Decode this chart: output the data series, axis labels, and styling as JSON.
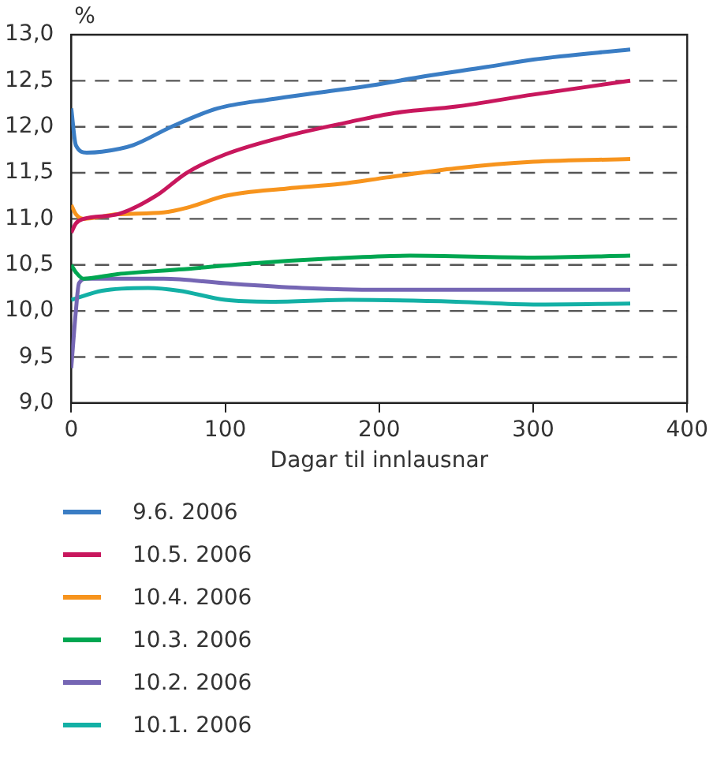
{
  "chart_data": {
    "type": "line",
    "xlabel": "Dagar til innlausnar",
    "ylabel": "%",
    "xlim": [
      0,
      400
    ],
    "xticks": [
      0,
      100,
      200,
      300,
      400
    ],
    "ylim": [
      9,
      13
    ],
    "yticks": [
      {
        "value": 9,
        "label": "9,0"
      },
      {
        "value": 9.5,
        "label": "9,5"
      },
      {
        "value": 10,
        "label": "10,0"
      },
      {
        "value": 10.5,
        "label": "10,5"
      },
      {
        "value": 11,
        "label": "11,0"
      },
      {
        "value": 11.5,
        "label": "11,5"
      },
      {
        "value": 12,
        "label": "12,0"
      },
      {
        "value": 12.5,
        "label": "12,5"
      },
      {
        "value": 13,
        "label": "13,0"
      }
    ],
    "grid": "y",
    "line_style": "solid",
    "marker": "none",
    "legend": "bottom",
    "series": [
      {
        "name": "9.6. 2006",
        "color": "#3a7dc4",
        "x": [
          0,
          3,
          10,
          20,
          40,
          65,
          95,
          130,
          160,
          195,
          230,
          270,
          300,
          363
        ],
        "values": [
          12.2,
          11.8,
          11.72,
          11.73,
          11.8,
          12.0,
          12.2,
          12.3,
          12.37,
          12.45,
          12.55,
          12.65,
          12.73,
          12.84
        ]
      },
      {
        "name": "10.5. 2006",
        "color": "#c8175d",
        "x": [
          0,
          3,
          8,
          30,
          55,
          75,
          100,
          140,
          180,
          210,
          250,
          300,
          363
        ],
        "values": [
          10.85,
          10.95,
          11.0,
          11.05,
          11.25,
          11.5,
          11.7,
          11.9,
          12.05,
          12.15,
          12.22,
          12.35,
          12.5
        ]
      },
      {
        "name": "10.4. 2006",
        "color": "#f7941d",
        "x": [
          0,
          3,
          8,
          30,
          60,
          75,
          100,
          140,
          175,
          205,
          250,
          300,
          363
        ],
        "values": [
          11.15,
          11.05,
          11.0,
          11.05,
          11.07,
          11.12,
          11.25,
          11.33,
          11.38,
          11.45,
          11.55,
          11.62,
          11.65
        ]
      },
      {
        "name": "10.3. 2006",
        "color": "#00a651",
        "x": [
          0,
          3,
          8,
          30,
          70,
          120,
          170,
          220,
          300,
          363
        ],
        "values": [
          10.5,
          10.42,
          10.35,
          10.4,
          10.45,
          10.52,
          10.57,
          10.6,
          10.58,
          10.6
        ]
      },
      {
        "name": "10.2. 2006",
        "color": "#7566b4",
        "x": [
          0,
          3,
          5,
          10,
          60,
          100,
          150,
          200,
          363
        ],
        "values": [
          9.38,
          10.0,
          10.3,
          10.35,
          10.35,
          10.3,
          10.25,
          10.23,
          10.23
        ]
      },
      {
        "name": "10.1. 2006",
        "color": "#13b0a5",
        "x": [
          0,
          20,
          50,
          70,
          100,
          130,
          180,
          250,
          300,
          363
        ],
        "values": [
          10.12,
          10.22,
          10.25,
          10.22,
          10.12,
          10.1,
          10.12,
          10.1,
          10.07,
          10.08
        ]
      }
    ]
  }
}
